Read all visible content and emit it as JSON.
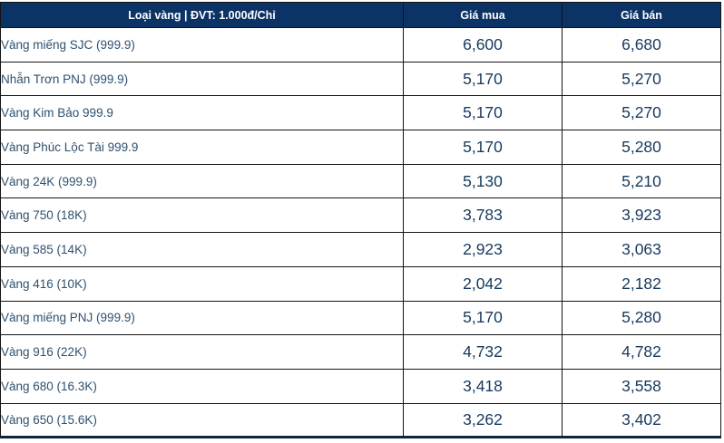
{
  "colors": {
    "header_bg": "#0b3366",
    "header_text": "#ffffff",
    "label_text": "#2e506e",
    "value_text": "#17395d",
    "grid_border": "#141414",
    "row_bg": "#ffffff"
  },
  "table": {
    "headers": {
      "type": "Loại vàng | ĐVT: 1.000đ/Chỉ",
      "buy": "Giá mua",
      "sell": "Giá bán"
    },
    "rows": [
      {
        "type": "Vàng miếng SJC (999.9)",
        "buy": "6,600",
        "sell": "6,680"
      },
      {
        "type": "Nhẫn Trơn PNJ (999.9)",
        "buy": "5,170",
        "sell": "5,270"
      },
      {
        "type": "Vàng Kim Bảo 999.9",
        "buy": "5,170",
        "sell": "5,270"
      },
      {
        "type": "Vàng Phúc Lộc Tài 999.9",
        "buy": "5,170",
        "sell": "5,280"
      },
      {
        "type": "Vàng 24K (999.9)",
        "buy": "5,130",
        "sell": "5,210"
      },
      {
        "type": "Vàng 750 (18K)",
        "buy": "3,783",
        "sell": "3,923"
      },
      {
        "type": "Vàng 585 (14K)",
        "buy": "2,923",
        "sell": "3,063"
      },
      {
        "type": "Vàng 416 (10K)",
        "buy": "2,042",
        "sell": "2,182"
      },
      {
        "type": "Vàng miếng PNJ (999.9)",
        "buy": "5,170",
        "sell": "5,280"
      },
      {
        "type": "Vàng 916 (22K)",
        "buy": "4,732",
        "sell": "4,782"
      },
      {
        "type": "Vàng 680 (16.3K)",
        "buy": "3,418",
        "sell": "3,558"
      },
      {
        "type": "Vàng 650 (15.6K)",
        "buy": "3,262",
        "sell": "3,402"
      }
    ]
  }
}
